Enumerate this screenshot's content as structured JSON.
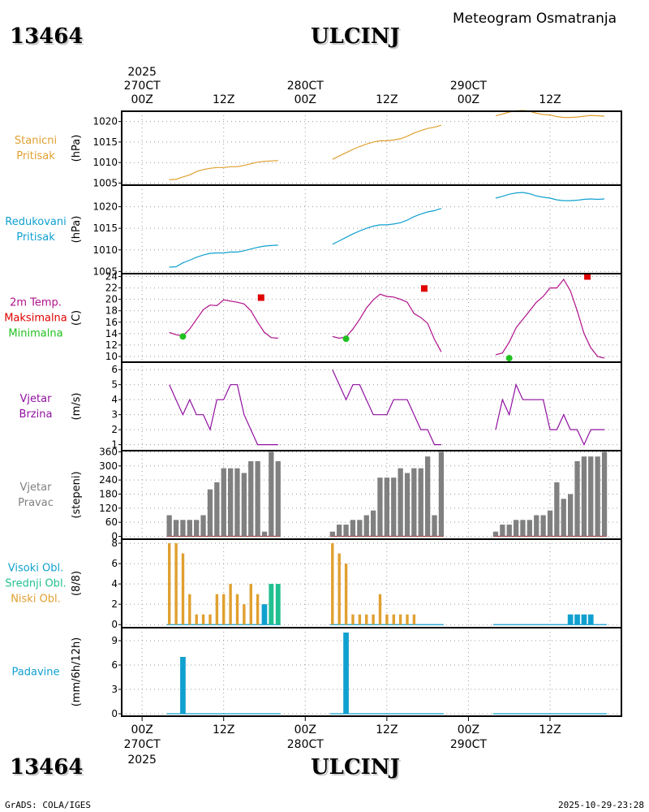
{
  "header": {
    "station_id": "13464",
    "station_name": "ULCINJ",
    "title": "Meteogram Osmatranja"
  },
  "footer": {
    "station_id": "13464",
    "station_name": "ULCINJ",
    "credit": "GrADS: COLA/IGES",
    "timestamp": "2025-10-29-23:28"
  },
  "colors": {
    "orange": "#e0a030",
    "cyan": "#10a0d0",
    "magenta": "#b0108a",
    "red": "#e00000",
    "green": "#20c020",
    "purple": "#9010a0",
    "gray": "#808080",
    "teal": "#20c090",
    "darkred": "#b03030"
  },
  "time_axis": {
    "top_year": "2025",
    "bottom_year": "2025",
    "ticks": [
      {
        "hour": 0,
        "line1": "00Z",
        "line2": "270CT"
      },
      {
        "hour": 12,
        "line1": "12Z",
        "line2": ""
      },
      {
        "hour": 24,
        "line1": "00Z",
        "line2": "280CT"
      },
      {
        "hour": 36,
        "line1": "12Z",
        "line2": ""
      },
      {
        "hour": 48,
        "line1": "00Z",
        "line2": "290CT"
      },
      {
        "hour": 60,
        "line1": "12Z",
        "line2": ""
      }
    ],
    "range_hours": [
      -3,
      70.5
    ]
  },
  "chart_data": [
    {
      "type": "line",
      "id": "station-pressure",
      "label_lines": [
        "Stanicni",
        "Pritisak"
      ],
      "ylabel": "(hPa)",
      "ylim": [
        1004.5,
        1022.5
      ],
      "yticks": [
        1005,
        1010,
        1015,
        1020
      ],
      "series": [
        {
          "name": "Stanicni Pritisak",
          "color": "orange",
          "segments": [
            {
              "x": [
                4,
                5,
                6,
                7,
                8,
                9,
                10,
                11,
                12,
                13,
                14,
                15,
                16,
                17,
                18,
                19,
                20
              ],
              "y": [
                1005.8,
                1005.9,
                1006.5,
                1007.0,
                1007.8,
                1008.3,
                1008.6,
                1008.8,
                1008.8,
                1009.0,
                1009.0,
                1009.3,
                1009.7,
                1010.1,
                1010.3,
                1010.4,
                1010.5
              ]
            },
            {
              "x": [
                28,
                29,
                30,
                31,
                32,
                33,
                34,
                35,
                36,
                37,
                38,
                39,
                40,
                41,
                42,
                43,
                44
              ],
              "y": [
                1010.8,
                1011.6,
                1012.4,
                1013.2,
                1013.9,
                1014.5,
                1015.0,
                1015.3,
                1015.3,
                1015.5,
                1015.8,
                1016.4,
                1017.2,
                1017.8,
                1018.3,
                1018.6,
                1019.1
              ]
            },
            {
              "x": [
                52,
                53,
                54,
                55,
                56,
                57,
                58,
                59,
                60,
                61,
                62,
                63,
                64,
                65,
                66,
                67,
                68
              ],
              "y": [
                1021.4,
                1021.8,
                1022.3,
                1022.6,
                1022.7,
                1022.5,
                1022.0,
                1021.7,
                1021.6,
                1021.2,
                1021.0,
                1021.0,
                1021.1,
                1021.3,
                1021.5,
                1021.4,
                1021.3
              ]
            }
          ]
        }
      ]
    },
    {
      "type": "line",
      "id": "reduced-pressure",
      "label_lines": [
        "Redukovani",
        "Pritisak"
      ],
      "ylabel": "(hPa)",
      "ylim": [
        1004.5,
        1025
      ],
      "yticks": [
        1005,
        1010,
        1015,
        1020
      ],
      "series": [
        {
          "name": "Redukovani Pritisak",
          "color": "cyan",
          "segments": [
            {
              "x": [
                4,
                5,
                6,
                7,
                8,
                9,
                10,
                11,
                12,
                13,
                14,
                15,
                16,
                17,
                18,
                19,
                20
              ],
              "y": [
                1006.0,
                1006.1,
                1007.0,
                1007.6,
                1008.3,
                1008.8,
                1009.2,
                1009.3,
                1009.3,
                1009.5,
                1009.5,
                1009.8,
                1010.2,
                1010.6,
                1010.9,
                1011.0,
                1011.1
              ]
            },
            {
              "x": [
                28,
                29,
                30,
                31,
                32,
                33,
                34,
                35,
                36,
                37,
                38,
                39,
                40,
                41,
                42,
                43,
                44
              ],
              "y": [
                1011.3,
                1012.1,
                1012.9,
                1013.7,
                1014.4,
                1015.0,
                1015.5,
                1015.8,
                1015.8,
                1016.0,
                1016.3,
                1016.9,
                1017.7,
                1018.3,
                1018.8,
                1019.1,
                1019.6
              ]
            },
            {
              "x": [
                52,
                53,
                54,
                55,
                56,
                57,
                58,
                59,
                60,
                61,
                62,
                63,
                64,
                65,
                66,
                67,
                68
              ],
              "y": [
                1022.0,
                1022.4,
                1022.9,
                1023.2,
                1023.3,
                1023.0,
                1022.5,
                1022.2,
                1022.0,
                1021.6,
                1021.4,
                1021.4,
                1021.5,
                1021.7,
                1021.8,
                1021.7,
                1021.8
              ]
            }
          ]
        }
      ]
    },
    {
      "type": "line",
      "id": "temperature",
      "label_lines": [
        "2m Temp.",
        "Maksimalna",
        "Minimalna"
      ],
      "label_colors": [
        "magenta",
        "red",
        "green"
      ],
      "ylabel": "(C)",
      "ylim": [
        9,
        24.5
      ],
      "yticks": [
        10,
        12,
        14,
        16,
        18,
        20,
        22,
        24
      ],
      "series": [
        {
          "name": "2m Temp.",
          "color": "magenta",
          "segments": [
            {
              "x": [
                4,
                5,
                6,
                7,
                8,
                9,
                10,
                11,
                12,
                13,
                14,
                15,
                16,
                17,
                18,
                19,
                20
              ],
              "y": [
                14.2,
                13.8,
                13.6,
                14.8,
                16.5,
                18.2,
                19.0,
                18.9,
                19.9,
                19.7,
                19.5,
                19.2,
                18.0,
                16.0,
                14.2,
                13.3,
                13.2
              ]
            },
            {
              "x": [
                28,
                29,
                30,
                31,
                32,
                33,
                34,
                35,
                36,
                37,
                38,
                39,
                40,
                41,
                42,
                43,
                44
              ],
              "y": [
                13.5,
                13.2,
                13.4,
                14.8,
                16.5,
                18.5,
                19.9,
                20.9,
                20.5,
                20.4,
                20.0,
                19.5,
                17.5,
                16.8,
                15.8,
                13.0,
                10.8
              ]
            },
            {
              "x": [
                52,
                53,
                54,
                55,
                56,
                57,
                58,
                59,
                60,
                61,
                62,
                63,
                64,
                65,
                66,
                67,
                68
              ],
              "y": [
                10.3,
                10.6,
                12.5,
                15.0,
                16.5,
                18.0,
                19.5,
                20.5,
                22.0,
                22.0,
                23.5,
                21.5,
                18.0,
                14.0,
                11.5,
                10.0,
                9.7
              ]
            }
          ]
        }
      ],
      "markers": [
        {
          "name": "Maksimalna",
          "shape": "square",
          "color": "red",
          "points": [
            [
              17.5,
              20.3
            ],
            [
              41.5,
              21.9
            ],
            [
              65.5,
              24.0
            ]
          ]
        },
        {
          "name": "Minimalna",
          "shape": "circle",
          "color": "green",
          "points": [
            [
              6,
              13.5
            ],
            [
              30,
              13.1
            ],
            [
              54,
              9.7
            ]
          ]
        }
      ]
    },
    {
      "type": "line",
      "id": "wind-speed",
      "label_lines": [
        "Vjetar",
        "Brzina"
      ],
      "ylabel": "(m/s)",
      "ylim": [
        0.6,
        6.5
      ],
      "yticks": [
        1,
        2,
        3,
        4,
        5,
        6
      ],
      "series": [
        {
          "name": "Vjetar Brzina",
          "color": "purple",
          "segments": [
            {
              "x": [
                4,
                5,
                6,
                7,
                8,
                9,
                10,
                11,
                12,
                13,
                14,
                15,
                16,
                17,
                18,
                19,
                20
              ],
              "y": [
                5,
                4,
                3,
                4,
                3,
                3,
                2,
                4,
                4,
                5,
                5,
                3,
                2,
                1,
                1,
                1,
                1
              ]
            },
            {
              "x": [
                28,
                29,
                30,
                31,
                32,
                33,
                34,
                35,
                36,
                37,
                38,
                39,
                40,
                41,
                42,
                43,
                44
              ],
              "y": [
                6,
                5,
                4,
                5,
                5,
                4,
                3,
                3,
                3,
                4,
                4,
                4,
                3,
                2,
                2,
                1,
                1
              ]
            },
            {
              "x": [
                52,
                53,
                54,
                55,
                56,
                57,
                58,
                59,
                60,
                61,
                62,
                63,
                64,
                65,
                66,
                67,
                68
              ],
              "y": [
                2,
                4,
                3,
                5,
                4,
                4,
                4,
                4,
                2,
                2,
                3,
                2,
                2,
                1,
                2,
                2,
                2
              ]
            }
          ]
        }
      ]
    },
    {
      "type": "bar",
      "id": "wind-direction",
      "label_lines": [
        "Vjetar",
        "Pravac"
      ],
      "ylabel": "(stepeni)",
      "ylim": [
        -12,
        365
      ],
      "yticks": [
        0,
        60,
        120,
        180,
        240,
        300,
        360
      ],
      "bar_width_hours": 0.75,
      "series": [
        {
          "name": "Vjetar Pravac",
          "color": "gray",
          "x": [
            4,
            5,
            6,
            7,
            8,
            9,
            10,
            11,
            12,
            13,
            14,
            15,
            16,
            17,
            18,
            19,
            20,
            28,
            29,
            30,
            31,
            32,
            33,
            34,
            35,
            36,
            37,
            38,
            39,
            40,
            41,
            42,
            43,
            44,
            52,
            53,
            54,
            55,
            56,
            57,
            58,
            59,
            60,
            61,
            62,
            63,
            64,
            65,
            66,
            67,
            68
          ],
          "values": [
            90,
            70,
            70,
            70,
            70,
            90,
            200,
            230,
            290,
            290,
            290,
            270,
            320,
            320,
            20,
            360,
            320,
            20,
            50,
            50,
            70,
            70,
            90,
            110,
            250,
            250,
            250,
            290,
            270,
            290,
            290,
            340,
            90,
            360,
            20,
            50,
            50,
            70,
            70,
            70,
            90,
            90,
            110,
            230,
            160,
            180,
            320,
            340,
            340,
            340,
            360
          ]
        }
      ],
      "baseline": {
        "color": "darkred",
        "value": 0
      }
    },
    {
      "type": "bar",
      "id": "clouds",
      "label_lines": [
        "Visoki Obl.",
        "Srednji Obl.",
        "Niski Obl."
      ],
      "label_colors": [
        "cyan",
        "teal",
        "orange"
      ],
      "ylabel": "(8/8)",
      "ylim": [
        -0.3,
        8.4
      ],
      "yticks": [
        0,
        2,
        4,
        6,
        8
      ],
      "series": [
        {
          "name": "Niski Obl.",
          "color": "orange",
          "bar_width_hours": 0.4,
          "x": [
            4,
            5,
            6,
            7,
            8,
            9,
            10,
            11,
            12,
            13,
            14,
            15,
            16,
            17,
            18,
            28,
            29,
            30,
            31,
            32,
            33,
            34,
            35,
            36,
            37,
            38,
            39,
            40
          ],
          "values": [
            8,
            8,
            7,
            3,
            1,
            1,
            1,
            3,
            3,
            4,
            3,
            2,
            4,
            3,
            2,
            8,
            7,
            6,
            1,
            1,
            1,
            1,
            3,
            1,
            1,
            1,
            1,
            1
          ]
        },
        {
          "name": "Visoki Obl.",
          "color": "cyan",
          "bar_width_hours": 0.8,
          "x": [
            18,
            63,
            64,
            65,
            66
          ],
          "values": [
            2,
            1,
            1,
            1,
            1
          ]
        },
        {
          "name": "Srednji Obl.",
          "color": "teal",
          "bar_width_hours": 0.7,
          "x": [
            19,
            20
          ],
          "values": [
            4,
            4
          ]
        }
      ],
      "baseline": {
        "color": "cyan",
        "value": 0
      }
    },
    {
      "type": "bar",
      "id": "precipitation",
      "label_lines": [
        "Padavine"
      ],
      "label_colors": [
        "cyan"
      ],
      "ylabel": "(mm/6h/12h)",
      "ylim": [
        -0.3,
        10.6
      ],
      "yticks": [
        0,
        3,
        6,
        9
      ],
      "series": [
        {
          "name": "Padavine",
          "color": "cyan",
          "bar_width_hours": 0.8,
          "x": [
            6,
            30
          ],
          "values": [
            7,
            10
          ]
        }
      ],
      "baseline": {
        "color": "cyan",
        "value": 0
      }
    }
  ]
}
